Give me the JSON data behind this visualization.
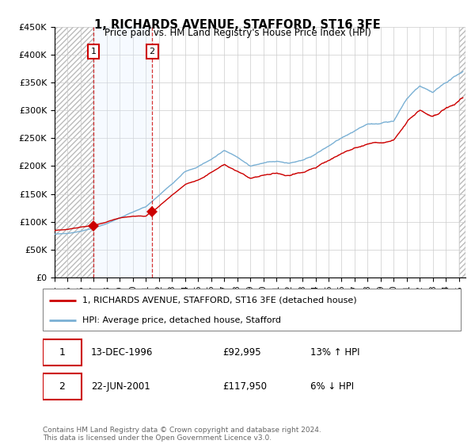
{
  "title": "1, RICHARDS AVENUE, STAFFORD, ST16 3FE",
  "subtitle": "Price paid vs. HM Land Registry's House Price Index (HPI)",
  "ylim": [
    0,
    450000
  ],
  "yticks": [
    0,
    50000,
    100000,
    150000,
    200000,
    250000,
    300000,
    350000,
    400000,
    450000
  ],
  "ytick_labels": [
    "£0",
    "£50K",
    "£100K",
    "£150K",
    "£200K",
    "£250K",
    "£300K",
    "£350K",
    "£400K",
    "£450K"
  ],
  "sale1_date": 1996.97,
  "sale1_price": 92995,
  "sale1_label": "1",
  "sale2_date": 2001.47,
  "sale2_price": 117950,
  "sale2_label": "2",
  "legend_line1": "1, RICHARDS AVENUE, STAFFORD, ST16 3FE (detached house)",
  "legend_line2": "HPI: Average price, detached house, Stafford",
  "table_row1": [
    "1",
    "13-DEC-1996",
    "£92,995",
    "13% ↑ HPI"
  ],
  "table_row2": [
    "2",
    "22-JUN-2001",
    "£117,950",
    "6% ↓ HPI"
  ],
  "footer": "Contains HM Land Registry data © Crown copyright and database right 2024.\nThis data is licensed under the Open Government Licence v3.0.",
  "hpi_color": "#7ab0d4",
  "price_color": "#cc0000",
  "bg_color": "#ffffff",
  "shade_color": "#ddeeff",
  "xmin": 1994.0,
  "xmax": 2025.5,
  "xticks": [
    1994,
    1995,
    1996,
    1997,
    1998,
    1999,
    2000,
    2001,
    2002,
    2003,
    2004,
    2005,
    2006,
    2007,
    2008,
    2009,
    2010,
    2011,
    2012,
    2013,
    2014,
    2015,
    2016,
    2017,
    2018,
    2019,
    2020,
    2021,
    2022,
    2023,
    2024,
    2025
  ],
  "hpi_anchors_x": [
    1994.0,
    1995.0,
    1996.0,
    1997.0,
    1998.0,
    1999.0,
    2000.0,
    2001.0,
    2002.0,
    2003.0,
    2004.0,
    2005.0,
    2006.0,
    2007.0,
    2008.0,
    2009.0,
    2010.0,
    2011.0,
    2012.0,
    2013.0,
    2014.0,
    2015.0,
    2016.0,
    2017.0,
    2018.0,
    2019.0,
    2020.0,
    2021.0,
    2022.0,
    2023.0,
    2024.0,
    2025.3
  ],
  "hpi_anchors_y": [
    78000,
    80000,
    84000,
    90000,
    98000,
    108000,
    118000,
    128000,
    148000,
    168000,
    190000,
    198000,
    212000,
    228000,
    218000,
    202000,
    207000,
    210000,
    207000,
    213000,
    224000,
    238000,
    252000,
    263000,
    272000,
    273000,
    278000,
    315000,
    338000,
    325000,
    340000,
    360000
  ],
  "price_anchors_x": [
    1994.0,
    1995.0,
    1996.0,
    1997.0,
    1998.0,
    1999.0,
    2000.0,
    2001.0,
    2002.0,
    2003.0,
    2004.0,
    2005.0,
    2006.0,
    2007.0,
    2008.0,
    2009.0,
    2010.0,
    2011.0,
    2012.0,
    2013.0,
    2014.0,
    2015.0,
    2016.0,
    2017.0,
    2018.0,
    2019.0,
    2020.0,
    2021.0,
    2022.0,
    2023.0,
    2024.0,
    2025.3
  ],
  "price_anchors_y": [
    87000,
    89000,
    93000,
    95000,
    103000,
    112000,
    116000,
    118000,
    138000,
    158000,
    178000,
    185000,
    198000,
    212000,
    200000,
    186000,
    191000,
    193000,
    189000,
    195000,
    205000,
    218000,
    230000,
    240000,
    248000,
    249000,
    253000,
    286000,
    308000,
    295000,
    310000,
    330000
  ]
}
